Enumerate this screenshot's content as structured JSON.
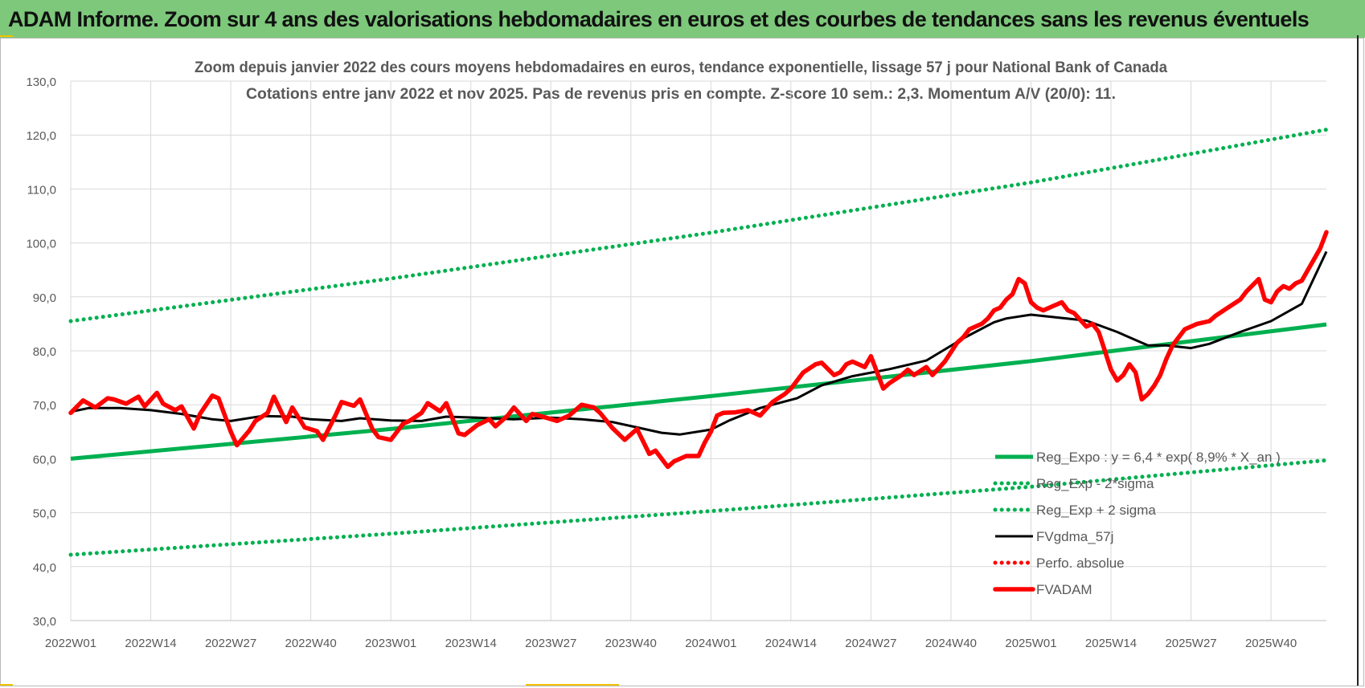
{
  "header": {
    "title": "ADAM Informe. Zoom sur 4 ans des valorisations hebdomadaires en euros et des courbes de tendances sans les revenus éventuels"
  },
  "colors": {
    "header_bg": "#7dc87b",
    "reg_expo": "#00b050",
    "fv_adam": "#ff0000",
    "fvgdma": "#000000",
    "grid": "#d9d9d9",
    "axis_text": "#595959"
  },
  "chart_data": {
    "type": "line",
    "title": "Zoom depuis janvier 2022 des cours moyens hebdomadaires en euros, tendance exponentielle, lissage 57 j pour National Bank of Canada",
    "subtitle": "Cotations entre janv 2022 et nov 2025. Pas de revenus pris en compte. Z-score 10 sem.: 2,3. Momentum A/V (20/0): 11.",
    "ylim": [
      30,
      130
    ],
    "y_ticks": [
      "30,0",
      "40,0",
      "50,0",
      "60,0",
      "70,0",
      "80,0",
      "90,0",
      "100,0",
      "110,0",
      "120,0",
      "130,0"
    ],
    "x_ticks": [
      "2022W01",
      "2022W14",
      "2022W27",
      "2022W40",
      "2023W01",
      "2023W14",
      "2023W27",
      "2023W40",
      "2024W01",
      "2024W14",
      "2024W27",
      "2024W40",
      "2025W01",
      "2025W14",
      "2025W27",
      "2025W40"
    ],
    "x_count": 205,
    "grid": true,
    "legend_position": "bottom-right",
    "series": [
      {
        "name": "Reg_Expo : y = 6,4 * exp( 8,9% * X_an )",
        "style": "solid",
        "color": "#00b050",
        "x": [
          0,
          52,
          104,
          156,
          204
        ],
        "values": [
          60.0,
          65.5,
          71.6,
          78.1,
          84.9
        ]
      },
      {
        "name": "Reg_Exp - 2*sigma",
        "style": "dotted",
        "color": "#00b050",
        "x": [
          0,
          52,
          104,
          156,
          204
        ],
        "values": [
          42.2,
          46.1,
          50.3,
          54.8,
          59.7
        ]
      },
      {
        "name": "Reg_Exp + 2 sigma",
        "style": "dotted",
        "color": "#00b050",
        "x": [
          0,
          52,
          104,
          156,
          204
        ],
        "values": [
          85.5,
          93.4,
          101.9,
          111.2,
          121.0
        ]
      },
      {
        "name": "FVgdma_57j",
        "style": "solid",
        "color": "#000000",
        "x": [
          0,
          3,
          8,
          13,
          18,
          23,
          26,
          31,
          36,
          39,
          44,
          47,
          52,
          57,
          61,
          66,
          72,
          78,
          83,
          88,
          92,
          96,
          99,
          104,
          107,
          112,
          118,
          122,
          127,
          133,
          139,
          145,
          150,
          152,
          156,
          160,
          165,
          170,
          175,
          178,
          182,
          185,
          190,
          195,
          200,
          204
        ],
        "values": [
          68.7,
          69.4,
          69.4,
          69.0,
          68.3,
          67.3,
          67.0,
          67.9,
          67.8,
          67.3,
          67.0,
          67.5,
          67.1,
          67.0,
          67.8,
          67.6,
          67.3,
          67.6,
          67.3,
          66.8,
          65.8,
          64.8,
          64.5,
          65.4,
          67.1,
          69.4,
          71.2,
          73.6,
          75.3,
          76.6,
          78.2,
          82.3,
          85.3,
          86.0,
          86.7,
          86.2,
          85.6,
          83.5,
          81.0,
          81.0,
          80.5,
          81.3,
          83.5,
          85.5,
          88.7,
          98.4
        ]
      },
      {
        "name": "Perfo. absolue",
        "style": "dotted",
        "color": "#ff0000",
        "x": [],
        "values": []
      },
      {
        "name": "FVADAM",
        "style": "solid",
        "color": "#ff0000",
        "x": [
          0,
          2,
          4,
          6,
          7,
          9,
          11,
          12,
          14,
          15,
          17,
          18,
          20,
          21,
          23,
          24,
          26,
          27,
          29,
          30,
          32,
          33,
          35,
          36,
          38,
          40,
          41,
          43,
          44,
          46,
          47,
          49,
          50,
          52,
          54,
          55,
          57,
          58,
          60,
          61,
          63,
          64,
          66,
          68,
          69,
          71,
          72,
          74,
          75,
          77,
          79,
          81,
          83,
          85,
          86,
          88,
          90,
          92,
          94,
          95,
          97,
          98,
          99,
          100,
          102,
          103,
          104,
          105,
          106,
          108,
          110,
          112,
          114,
          116,
          117,
          119,
          121,
          122,
          124,
          125,
          126,
          127,
          129,
          130,
          132,
          133,
          135,
          136,
          137,
          139,
          140,
          142,
          144,
          145,
          146,
          148,
          149,
          150,
          151,
          152,
          153,
          154,
          155,
          156,
          157,
          158,
          159,
          160,
          161,
          162,
          163,
          165,
          166,
          167,
          168,
          169,
          170,
          171,
          172,
          173,
          174,
          175,
          176,
          177,
          178,
          179,
          180,
          181,
          183,
          185,
          186,
          188,
          190,
          191,
          193,
          194,
          195,
          196,
          197,
          198,
          199,
          200,
          201,
          202,
          203,
          204
        ],
        "values": [
          68.5,
          70.8,
          69.5,
          71.2,
          71.0,
          70.2,
          71.5,
          69.7,
          72.2,
          70.2,
          69.0,
          69.7,
          65.6,
          68.3,
          71.7,
          71.2,
          65.0,
          62.5,
          65.2,
          67.0,
          68.5,
          71.5,
          66.8,
          69.5,
          65.8,
          65.1,
          63.5,
          68.0,
          70.5,
          69.8,
          71.0,
          65.5,
          64.0,
          63.5,
          66.5,
          67.0,
          68.5,
          70.3,
          68.8,
          70.3,
          64.7,
          64.4,
          66.2,
          67.3,
          66.0,
          68.0,
          69.5,
          67.0,
          68.3,
          67.7,
          67.0,
          68.0,
          70.0,
          69.5,
          68.5,
          65.7,
          63.5,
          65.5,
          60.9,
          61.5,
          58.5,
          59.5,
          60.0,
          60.5,
          60.5,
          63.0,
          65.0,
          68.0,
          68.5,
          68.6,
          69.0,
          68.0,
          70.5,
          72.0,
          73.0,
          76.0,
          77.5,
          77.8,
          75.5,
          76.0,
          77.5,
          78.0,
          77.0,
          79.0,
          73.0,
          74.0,
          75.5,
          76.5,
          75.5,
          77.0,
          75.5,
          78.0,
          81.5,
          82.5,
          84.0,
          85.0,
          86.0,
          87.5,
          88.0,
          89.5,
          90.5,
          93.3,
          92.5,
          89.0,
          88.0,
          87.5,
          88.0,
          88.5,
          89.0,
          87.5,
          87.0,
          84.5,
          85.0,
          83.5,
          80.0,
          76.5,
          74.5,
          75.5,
          77.5,
          76.0,
          71.0,
          72.0,
          73.5,
          75.5,
          78.5,
          81.0,
          82.5,
          84.0,
          85.0,
          85.5,
          86.5,
          88.0,
          89.5,
          91.0,
          93.3,
          89.5,
          89.0,
          91.0,
          92.0,
          91.5,
          92.5,
          93.0,
          95.0,
          97.0,
          99.0,
          102.0
        ]
      }
    ]
  }
}
